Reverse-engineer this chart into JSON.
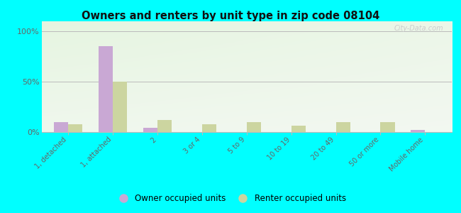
{
  "title": "Owners and renters by unit type in zip code 08104",
  "categories": [
    "1, detached",
    "1, attached",
    "2",
    "3 or 4",
    "5 to 9",
    "10 to 19",
    "20 to 49",
    "50 or more",
    "Mobile home"
  ],
  "owner_values": [
    10,
    85,
    4,
    0,
    0,
    0,
    0,
    0,
    2
  ],
  "renter_values": [
    8,
    50,
    12,
    8,
    10,
    6,
    10,
    10,
    0
  ],
  "owner_color": "#c9a8d4",
  "renter_color": "#ccd5a0",
  "outer_bg": "#00ffff",
  "yticks": [
    0,
    50,
    100
  ],
  "ylabels": [
    "0%",
    "50%",
    "100%"
  ],
  "bar_width": 0.32,
  "legend_owner": "Owner occupied units",
  "legend_renter": "Renter occupied units",
  "watermark": "City-Data.com"
}
